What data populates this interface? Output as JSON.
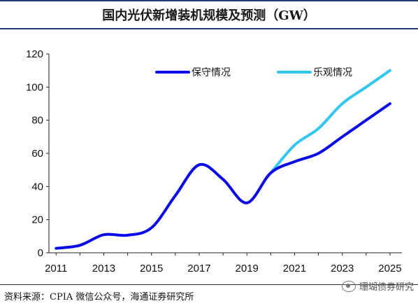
{
  "title": "国内光伏新增装机规模及预测（GW）",
  "source": "资料来源：CPIA 微信公众号，海通证券研究所",
  "watermark": "珊瑚债券研究",
  "colors": {
    "conservative": "#0a0ae6",
    "optimistic": "#33c6ee",
    "header_rule": "#1f3a78"
  },
  "chart_data": {
    "type": "line",
    "title": "国内光伏新增装机规模及预测（GW）",
    "xlabel": "",
    "ylabel": "",
    "xlim": [
      2010.7,
      2025.5
    ],
    "ylim": [
      0,
      120
    ],
    "yticks": [
      0,
      20,
      40,
      60,
      80,
      100,
      120
    ],
    "xticks": [
      "2011",
      "2013",
      "2015",
      "2017",
      "2019",
      "2021",
      "2023",
      "2025"
    ],
    "grid": false,
    "legend": "top",
    "series": [
      {
        "name": "保守情况",
        "x": [
          2011,
          2012,
          2013,
          2014,
          2015,
          2016,
          2017,
          2018,
          2019,
          2020,
          2021,
          2022,
          2023,
          2024,
          2025
        ],
        "values": [
          2.7,
          4.5,
          10.9,
          10.6,
          15.1,
          34.5,
          53.1,
          44.3,
          30.1,
          48.2,
          55,
          60,
          70,
          80,
          90
        ]
      },
      {
        "name": "乐观情况",
        "x": [
          2020,
          2021,
          2022,
          2023,
          2024,
          2025
        ],
        "values": [
          48.2,
          65,
          75,
          90,
          100,
          110
        ]
      }
    ]
  }
}
